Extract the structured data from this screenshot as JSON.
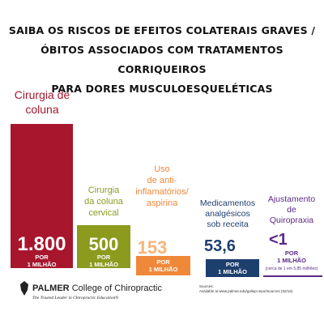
{
  "title": [
    "SAIBA OS RISCOS DE EFEITOS COLATERAIS GRAVES /",
    "ÓBITOS ASSOCIADOS COM TRATAMENTOS CORRIQUEIROS",
    "PARA DORES MUSCULOESQUELÉTICAS"
  ],
  "items": [
    {
      "label": [
        "Cirurgia de",
        "coluna"
      ],
      "value": "1.800",
      "unit": [
        "POR",
        "1 MILHÃO"
      ]
    },
    {
      "label": [
        "Cirurgia",
        "da coluna",
        "cervical"
      ],
      "value": "500",
      "unit": [
        "POR",
        "1 MILHÃO"
      ]
    },
    {
      "label": [
        "Uso",
        "de anti-",
        "inflamatórios/",
        "aspirina"
      ],
      "value": "153",
      "unit": [
        "POR",
        "1 MILHÃO"
      ]
    },
    {
      "label": [
        "Medicamentos",
        "analgésicos",
        "sob receita"
      ],
      "value": "53,6",
      "unit": [
        "POR",
        "1 MILHÃO"
      ]
    },
    {
      "label": [
        "Ajustamento",
        "de",
        "Quiropraxia"
      ],
      "value": "<1",
      "unit": [
        "POR",
        "1 MILHÃO"
      ],
      "note": "(cerca de 1 em  5,85 milhões)"
    }
  ],
  "footer": {
    "brand": "PALMER",
    "college": "College of Chiropractic",
    "tagline": "The Trusted Leader in Chiropractic Education®",
    "sources_title": "Sources:",
    "sources": "Available at www.palmer.edu/gallup-reportsources (02/16)"
  }
}
